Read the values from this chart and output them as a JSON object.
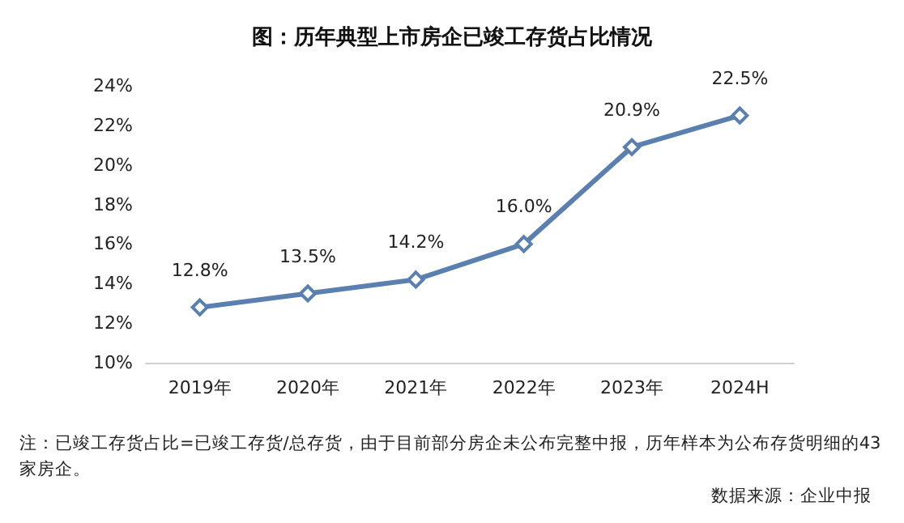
{
  "chart_data": {
    "type": "line",
    "title": "图：历年典型上市房企已竣工存货占比情况",
    "categories": [
      "2019年",
      "2020年",
      "2021年",
      "2022年",
      "2023年",
      "2024H"
    ],
    "series": [
      {
        "color": "#5b7fae",
        "values": [
          12.8,
          13.5,
          14.2,
          16.0,
          20.9,
          22.5
        ],
        "value_labels": [
          "12.8%",
          "13.5%",
          "14.2%",
          "16.0%",
          "20.9%",
          "22.5%"
        ]
      }
    ],
    "ylim": [
      10,
      24
    ],
    "yticks": [
      {
        "value": 10,
        "label": "10%"
      },
      {
        "value": 12,
        "label": "12%"
      },
      {
        "value": 14,
        "label": "14%"
      },
      {
        "value": 16,
        "label": "16%"
      },
      {
        "value": 18,
        "label": "18%"
      },
      {
        "value": 20,
        "label": "20%"
      },
      {
        "value": 22,
        "label": "22%"
      },
      {
        "value": 24,
        "label": "24%"
      }
    ],
    "grid": false,
    "marker": "diamond",
    "line_style": "solid",
    "annotations": [
      "注：已竣工存货占比=已竣工存货/总存货，由于目前部分房企未公布完整中报，历年样本为公布存货明细的43家房企。",
      "数据来源：企业中报"
    ]
  }
}
